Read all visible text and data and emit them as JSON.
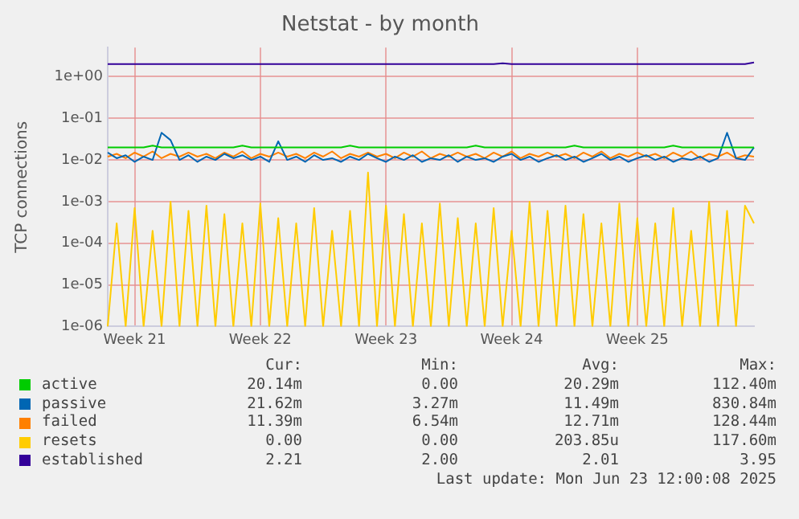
{
  "chart_data": {
    "type": "line",
    "title": "Netstat - by month",
    "ylabel": "TCP connections",
    "log": "y",
    "grid": true,
    "legend": "bottom",
    "marker": "none",
    "line_style": "solid",
    "categories": [
      null,
      null,
      null,
      "Week 21",
      null,
      null,
      null,
      null,
      null,
      null,
      null,
      null,
      null,
      null,
      null,
      null,
      null,
      "Week 22",
      null,
      null,
      null,
      null,
      null,
      null,
      null,
      null,
      null,
      null,
      null,
      null,
      null,
      "Week 23",
      null,
      null,
      null,
      null,
      null,
      null,
      null,
      null,
      null,
      null,
      null,
      null,
      null,
      "Week 24",
      null,
      null,
      null,
      null,
      null,
      null,
      null,
      null,
      null,
      null,
      null,
      null,
      null,
      "Week 25",
      null,
      null,
      null,
      null,
      null,
      null,
      null,
      null,
      null,
      null,
      null,
      null,
      null
    ],
    "ylim": [
      1e-06,
      5
    ],
    "yticks": [
      {
        "value": 1e-06,
        "label": "1e-06"
      },
      {
        "value": 1e-05,
        "label": "1e-05"
      },
      {
        "value": 0.0001,
        "label": "1e-04"
      },
      {
        "value": 0.001,
        "label": "1e-03"
      },
      {
        "value": 0.01,
        "label": "1e-02"
      },
      {
        "value": 0.1,
        "label": "1e-01"
      },
      {
        "value": 1,
        "label": "1e+00"
      }
    ],
    "series": [
      {
        "name": "active",
        "color": "#00cc00",
        "values": [
          0.02,
          0.02,
          0.02,
          0.02,
          0.02,
          0.022,
          0.02,
          0.02,
          0.02,
          0.02,
          0.02,
          0.02,
          0.02,
          0.02,
          0.02,
          0.022,
          0.02,
          0.02,
          0.02,
          0.02,
          0.02,
          0.02,
          0.02,
          0.02,
          0.02,
          0.02,
          0.02,
          0.022,
          0.02,
          0.02,
          0.02,
          0.02,
          0.02,
          0.02,
          0.02,
          0.02,
          0.02,
          0.02,
          0.02,
          0.02,
          0.02,
          0.022,
          0.02,
          0.02,
          0.02,
          0.02,
          0.02,
          0.02,
          0.02,
          0.02,
          0.02,
          0.02,
          0.022,
          0.02,
          0.02,
          0.02,
          0.02,
          0.02,
          0.02,
          0.02,
          0.02,
          0.02,
          0.02,
          0.022,
          0.02,
          0.02,
          0.02,
          0.02,
          0.02,
          0.02,
          0.02,
          0.02,
          0.02
        ]
      },
      {
        "name": "passive",
        "color": "#0066b3",
        "values": [
          0.015,
          0.011,
          0.013,
          0.009,
          0.012,
          0.01,
          0.045,
          0.03,
          0.01,
          0.013,
          0.009,
          0.012,
          0.01,
          0.014,
          0.011,
          0.013,
          0.01,
          0.012,
          0.009,
          0.028,
          0.01,
          0.012,
          0.009,
          0.013,
          0.01,
          0.011,
          0.009,
          0.012,
          0.01,
          0.014,
          0.011,
          0.009,
          0.012,
          0.01,
          0.013,
          0.009,
          0.011,
          0.01,
          0.013,
          0.009,
          0.012,
          0.01,
          0.011,
          0.009,
          0.012,
          0.014,
          0.01,
          0.012,
          0.009,
          0.011,
          0.013,
          0.01,
          0.012,
          0.009,
          0.011,
          0.014,
          0.01,
          0.012,
          0.009,
          0.011,
          0.013,
          0.01,
          0.012,
          0.009,
          0.011,
          0.01,
          0.012,
          0.009,
          0.011,
          0.045,
          0.011,
          0.01,
          0.02
        ]
      },
      {
        "name": "failed",
        "color": "#ff8000",
        "values": [
          0.012,
          0.014,
          0.011,
          0.015,
          0.012,
          0.016,
          0.011,
          0.014,
          0.012,
          0.015,
          0.012,
          0.014,
          0.011,
          0.015,
          0.012,
          0.016,
          0.011,
          0.014,
          0.012,
          0.015,
          0.012,
          0.014,
          0.011,
          0.015,
          0.012,
          0.016,
          0.011,
          0.014,
          0.012,
          0.015,
          0.012,
          0.014,
          0.011,
          0.015,
          0.012,
          0.016,
          0.011,
          0.014,
          0.012,
          0.015,
          0.012,
          0.014,
          0.011,
          0.015,
          0.012,
          0.016,
          0.011,
          0.014,
          0.012,
          0.015,
          0.012,
          0.014,
          0.011,
          0.015,
          0.012,
          0.016,
          0.011,
          0.014,
          0.012,
          0.015,
          0.012,
          0.014,
          0.011,
          0.015,
          0.012,
          0.016,
          0.011,
          0.014,
          0.012,
          0.015,
          0.011,
          0.013,
          0.012
        ]
      },
      {
        "name": "resets",
        "color": "#ffcc00",
        "values": [
          1e-06,
          0.0003,
          1e-06,
          0.0007,
          1e-06,
          0.0002,
          1e-06,
          0.001,
          1e-06,
          0.0006,
          1e-06,
          0.0008,
          1e-06,
          0.0005,
          1e-06,
          0.0003,
          1e-06,
          0.0009,
          1e-06,
          0.0004,
          1e-06,
          0.0003,
          1e-06,
          0.0007,
          1e-06,
          0.0002,
          1e-06,
          0.0006,
          1e-06,
          0.005,
          1e-06,
          0.0008,
          1e-06,
          0.0005,
          1e-06,
          0.0003,
          1e-06,
          0.0009,
          1e-06,
          0.0004,
          1e-06,
          0.0003,
          1e-06,
          0.0007,
          1e-06,
          0.0002,
          1e-06,
          0.001,
          1e-06,
          0.0006,
          1e-06,
          0.0008,
          1e-06,
          0.0005,
          1e-06,
          0.0003,
          1e-06,
          0.0009,
          1e-06,
          0.0004,
          1e-06,
          0.0003,
          1e-06,
          0.0007,
          1e-06,
          0.0002,
          1e-06,
          0.001,
          1e-06,
          0.0006,
          1e-06,
          0.0008,
          0.0003
        ]
      },
      {
        "name": "established",
        "color": "#330099",
        "values": [
          2,
          2,
          2,
          2,
          2,
          2,
          2,
          2,
          2,
          2,
          2,
          2,
          2,
          2,
          2,
          2,
          2,
          2,
          2,
          2,
          2,
          2,
          2,
          2,
          2,
          2,
          2,
          2,
          2,
          2,
          2,
          2,
          2,
          2,
          2,
          2,
          2,
          2,
          2,
          2,
          2,
          2,
          2,
          2,
          2.1,
          2,
          2,
          2,
          2,
          2,
          2,
          2,
          2,
          2,
          2,
          2,
          2,
          2,
          2,
          2,
          2,
          2,
          2,
          2,
          2,
          2,
          2,
          2,
          2,
          2,
          2,
          2,
          2.2
        ]
      }
    ],
    "annotations": [
      "Cur:",
      "Min:",
      "Avg:",
      "Max:",
      "20.14m",
      "0.00",
      "20.29m",
      "112.40m",
      "21.62m",
      "3.27m",
      "11.49m",
      "830.84m",
      "11.39m",
      "6.54m",
      "12.71m",
      "128.44m",
      "0.00",
      "0.00",
      "203.85u",
      "117.60m",
      "2.21",
      "2.00",
      "2.01",
      "3.95",
      "Last update: Mon Jun 23 12:00:08 2025"
    ]
  }
}
